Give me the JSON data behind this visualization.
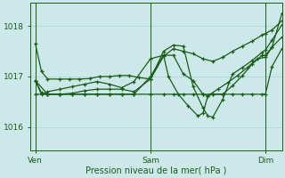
{
  "background_color": "#cce8e8",
  "grid_color": "#aad4d4",
  "line_color": "#1a5c1a",
  "title": "Pression niveau de la mer( hPa )",
  "xlabel_ticks": [
    "Ven",
    "Sam",
    "Dim"
  ],
  "xlabel_tick_positions": [
    0.0,
    0.467,
    0.933
  ],
  "ylabel_ticks": [
    1016,
    1017,
    1018
  ],
  "ylim": [
    1015.55,
    1018.45
  ],
  "xlim": [
    -0.02,
    1.0
  ],
  "vlines": [
    0.0,
    0.467,
    0.933
  ],
  "series": [
    {
      "x": [
        0.0,
        0.025,
        0.05,
        0.1,
        0.14,
        0.18,
        0.22,
        0.26,
        0.3,
        0.34,
        0.38,
        0.42,
        0.467,
        0.52,
        0.56,
        0.6,
        0.64,
        0.68,
        0.72,
        0.76,
        0.8,
        0.84,
        0.88,
        0.92,
        0.933,
        0.96,
        1.0
      ],
      "y": [
        1017.65,
        1017.1,
        1016.95,
        1016.95,
        1016.95,
        1016.95,
        1016.96,
        1017.0,
        1017.0,
        1017.02,
        1017.02,
        1016.98,
        1016.95,
        1017.4,
        1017.55,
        1017.5,
        1017.45,
        1017.35,
        1017.3,
        1017.38,
        1017.5,
        1017.6,
        1017.7,
        1017.82,
        1017.85,
        1017.92,
        1018.1
      ]
    },
    {
      "x": [
        0.0,
        0.05,
        0.1,
        0.15,
        0.2,
        0.25,
        0.3,
        0.35,
        0.4,
        0.467,
        0.52,
        0.56,
        0.6,
        0.64,
        0.68,
        0.7,
        0.72,
        0.76,
        0.8,
        0.84,
        0.88,
        0.92,
        0.933,
        0.96,
        1.0
      ],
      "y": [
        1016.92,
        1016.65,
        1016.65,
        1016.67,
        1016.72,
        1016.75,
        1016.75,
        1016.75,
        1016.7,
        1016.95,
        1017.5,
        1017.62,
        1017.6,
        1016.8,
        1016.38,
        1016.22,
        1016.2,
        1016.55,
        1017.05,
        1017.18,
        1017.32,
        1017.48,
        1017.52,
        1017.72,
        1018.02
      ]
    },
    {
      "x": [
        0.0,
        0.05,
        0.1,
        0.15,
        0.2,
        0.25,
        0.3,
        0.35,
        0.4,
        0.467,
        0.52,
        0.56,
        0.6,
        0.64,
        0.68,
        0.72,
        0.76,
        0.8,
        0.84,
        0.88,
        0.92,
        0.933,
        0.96,
        1.0
      ],
      "y": [
        1016.65,
        1016.65,
        1016.65,
        1016.65,
        1016.65,
        1016.65,
        1016.65,
        1016.65,
        1016.65,
        1016.65,
        1016.65,
        1016.65,
        1016.65,
        1016.65,
        1016.65,
        1016.65,
        1016.65,
        1016.65,
        1016.65,
        1016.65,
        1016.65,
        1016.65,
        1017.2,
        1017.55
      ]
    },
    {
      "x": [
        0.0,
        0.025,
        0.05,
        0.1,
        0.15,
        0.2,
        0.25,
        0.3,
        0.35,
        0.4,
        0.467,
        0.52,
        0.54,
        0.58,
        0.62,
        0.66,
        0.68,
        0.7,
        0.74,
        0.78,
        0.82,
        0.86,
        0.9,
        0.933,
        0.96,
        1.0
      ],
      "y": [
        1016.92,
        1016.65,
        1016.7,
        1016.75,
        1016.8,
        1016.85,
        1016.9,
        1016.85,
        1016.78,
        1016.9,
        1017.35,
        1017.42,
        1017.0,
        1016.65,
        1016.42,
        1016.22,
        1016.28,
        1016.62,
        1016.75,
        1016.88,
        1017.02,
        1017.18,
        1017.35,
        1017.38,
        1017.58,
        1017.78
      ]
    },
    {
      "x": [
        0.0,
        0.025,
        0.05,
        0.1,
        0.15,
        0.2,
        0.25,
        0.3,
        0.35,
        0.4,
        0.467,
        0.52,
        0.56,
        0.6,
        0.64,
        0.68,
        0.7,
        0.72,
        0.76,
        0.8,
        0.84,
        0.88,
        0.92,
        0.933,
        0.96,
        1.0
      ],
      "y": [
        1016.92,
        1016.68,
        1016.65,
        1016.65,
        1016.65,
        1016.65,
        1016.65,
        1016.65,
        1016.65,
        1016.65,
        1017.0,
        1017.42,
        1017.42,
        1017.05,
        1016.92,
        1016.65,
        1016.62,
        1016.65,
        1016.65,
        1016.82,
        1017.02,
        1017.25,
        1017.42,
        1017.42,
        1017.58,
        1018.25
      ]
    }
  ]
}
